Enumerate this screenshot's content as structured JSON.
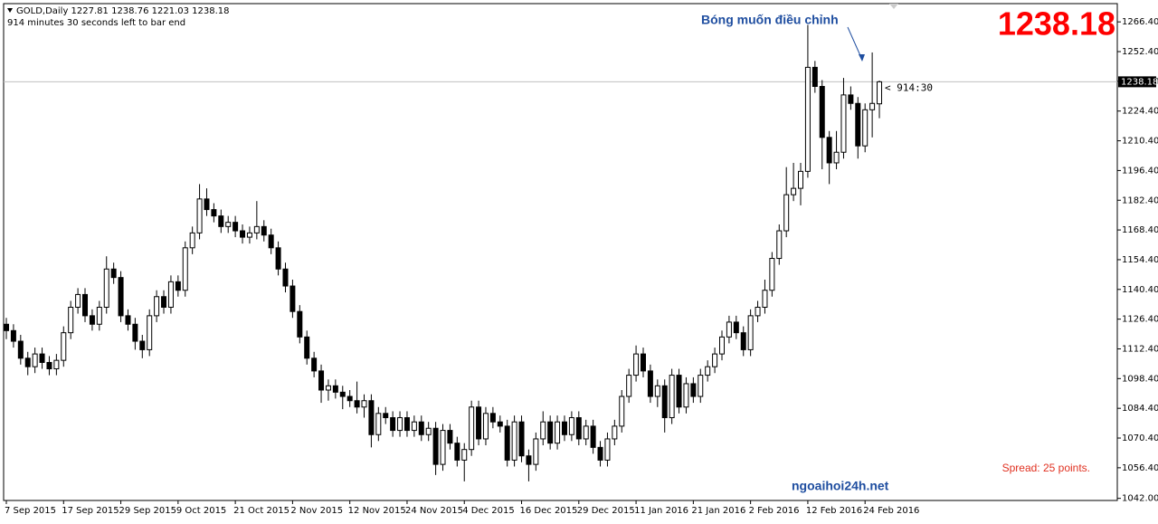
{
  "chart_data": {
    "type": "candlestick",
    "header": "GOLD,Daily  1227.81 1238.76 1221.03 1238.18",
    "timer": "914 minutes 30 seconds left to bar end",
    "annotation": "Bóng muốn điều chỉnh",
    "bid": 1238.18,
    "countdown": "< 914:30",
    "watermark": "ngoaihoi24h.net",
    "spread": "Spread: 25 points.",
    "up_color": "#ffffff",
    "down_color": "#000000",
    "wick_color": "#000000",
    "ylim": [
      1041,
      1275
    ],
    "yticks": [
      {
        "value": 1266.4,
        "label": "1266.40"
      },
      {
        "value": 1252.4,
        "label": "1252.40"
      },
      {
        "value": 1238.4,
        "label": "1238.40"
      },
      {
        "value": 1224.4,
        "label": "1224.40"
      },
      {
        "value": 1210.4,
        "label": "1210.40"
      },
      {
        "value": 1196.4,
        "label": "1196.40"
      },
      {
        "value": 1182.4,
        "label": "1182.40"
      },
      {
        "value": 1168.4,
        "label": "1168.40"
      },
      {
        "value": 1154.4,
        "label": "1154.40"
      },
      {
        "value": 1140.4,
        "label": "1140.40"
      },
      {
        "value": 1126.4,
        "label": "1126.40"
      },
      {
        "value": 1112.4,
        "label": "1112.40"
      },
      {
        "value": 1098.4,
        "label": "1098.40"
      },
      {
        "value": 1084.4,
        "label": "1084.40"
      },
      {
        "value": 1070.4,
        "label": "1070.40"
      },
      {
        "value": 1056.4,
        "label": "1056.40"
      },
      {
        "value": 1042,
        "label": "1042.00"
      }
    ],
    "categories": [
      "7 Sep 2015",
      null,
      null,
      null,
      null,
      null,
      null,
      null,
      "17 Sep 2015",
      null,
      null,
      null,
      null,
      null,
      null,
      null,
      "29 Sep 2015",
      null,
      null,
      null,
      null,
      null,
      null,
      null,
      "9 Oct 2015",
      null,
      null,
      null,
      null,
      null,
      null,
      null,
      "21 Oct 2015",
      null,
      null,
      null,
      null,
      null,
      null,
      null,
      "2 Nov 2015",
      null,
      null,
      null,
      null,
      null,
      null,
      null,
      "12 Nov 2015",
      null,
      null,
      null,
      null,
      null,
      null,
      null,
      "24 Nov 2015",
      null,
      null,
      null,
      null,
      null,
      null,
      null,
      "4 Dec 2015",
      null,
      null,
      null,
      null,
      null,
      null,
      null,
      "16 Dec 2015",
      null,
      null,
      null,
      null,
      null,
      null,
      null,
      "29 Dec 2015",
      null,
      null,
      null,
      null,
      null,
      null,
      null,
      "11 Jan 2016",
      null,
      null,
      null,
      null,
      null,
      null,
      null,
      "21 Jan 2016",
      null,
      null,
      null,
      null,
      null,
      null,
      null,
      "2 Feb 2016",
      null,
      null,
      null,
      null,
      null,
      null,
      null,
      "12 Feb 2016",
      null,
      null,
      null,
      null,
      null,
      null,
      null,
      "24 Feb 2016",
      null,
      null
    ],
    "ohlc": [
      [
        1124,
        1127,
        1117,
        1121
      ],
      [
        1121,
        1124,
        1113,
        1116
      ],
      [
        1116,
        1119,
        1105,
        1108
      ],
      [
        1108,
        1111,
        1100,
        1104
      ],
      [
        1104,
        1113,
        1101,
        1110
      ],
      [
        1110,
        1113,
        1103,
        1106
      ],
      [
        1106,
        1109,
        1100,
        1103
      ],
      [
        1103,
        1110,
        1100,
        1107
      ],
      [
        1107,
        1123,
        1104,
        1120
      ],
      [
        1120,
        1135,
        1117,
        1132
      ],
      [
        1132,
        1141,
        1129,
        1138
      ],
      [
        1138,
        1141,
        1125,
        1128
      ],
      [
        1128,
        1131,
        1121,
        1124
      ],
      [
        1124,
        1135,
        1121,
        1132
      ],
      [
        1132,
        1156,
        1129,
        1150
      ],
      [
        1150,
        1153,
        1143,
        1146
      ],
      [
        1146,
        1149,
        1125,
        1128
      ],
      [
        1128,
        1131,
        1121,
        1124
      ],
      [
        1124,
        1127,
        1112,
        1116
      ],
      [
        1116,
        1119,
        1108,
        1112
      ],
      [
        1112,
        1131,
        1109,
        1128
      ],
      [
        1128,
        1140,
        1125,
        1137
      ],
      [
        1137,
        1140,
        1129,
        1132
      ],
      [
        1132,
        1147,
        1129,
        1144
      ],
      [
        1144,
        1147,
        1137,
        1140
      ],
      [
        1140,
        1163,
        1137,
        1160
      ],
      [
        1160,
        1170,
        1157,
        1167
      ],
      [
        1167,
        1190,
        1164,
        1183
      ],
      [
        1183,
        1188,
        1175,
        1178
      ],
      [
        1178,
        1181,
        1172,
        1175
      ],
      [
        1175,
        1178,
        1167,
        1170
      ],
      [
        1170,
        1175,
        1167,
        1172
      ],
      [
        1172,
        1175,
        1165,
        1168
      ],
      [
        1168,
        1171,
        1162,
        1165
      ],
      [
        1165,
        1170,
        1162,
        1167
      ],
      [
        1167,
        1182,
        1164,
        1170
      ],
      [
        1170,
        1173,
        1163,
        1166
      ],
      [
        1166,
        1169,
        1157,
        1160
      ],
      [
        1160,
        1163,
        1147,
        1150
      ],
      [
        1150,
        1153,
        1139,
        1142
      ],
      [
        1142,
        1145,
        1127,
        1130
      ],
      [
        1130,
        1133,
        1115,
        1118
      ],
      [
        1118,
        1121,
        1105,
        1108
      ],
      [
        1108,
        1111,
        1099,
        1102
      ],
      [
        1102,
        1105,
        1087,
        1093
      ],
      [
        1093,
        1098,
        1088,
        1095
      ],
      [
        1095,
        1098,
        1089,
        1092
      ],
      [
        1092,
        1095,
        1084,
        1090
      ],
      [
        1090,
        1093,
        1085,
        1088
      ],
      [
        1088,
        1097,
        1082,
        1085
      ],
      [
        1085,
        1091,
        1080,
        1088
      ],
      [
        1088,
        1091,
        1066,
        1072
      ],
      [
        1072,
        1085,
        1069,
        1082
      ],
      [
        1082,
        1085,
        1077,
        1080
      ],
      [
        1080,
        1083,
        1071,
        1074
      ],
      [
        1074,
        1083,
        1071,
        1080
      ],
      [
        1080,
        1083,
        1071,
        1074
      ],
      [
        1074,
        1081,
        1071,
        1078
      ],
      [
        1078,
        1081,
        1069,
        1072
      ],
      [
        1072,
        1078,
        1069,
        1075
      ],
      [
        1075,
        1078,
        1053,
        1058
      ],
      [
        1058,
        1077,
        1055,
        1074
      ],
      [
        1074,
        1077,
        1065,
        1068
      ],
      [
        1068,
        1071,
        1057,
        1060
      ],
      [
        1060,
        1068,
        1050,
        1065
      ],
      [
        1065,
        1088,
        1062,
        1085
      ],
      [
        1085,
        1088,
        1067,
        1070
      ],
      [
        1070,
        1085,
        1067,
        1082
      ],
      [
        1082,
        1085,
        1075,
        1078
      ],
      [
        1078,
        1081,
        1073,
        1076
      ],
      [
        1076,
        1079,
        1057,
        1060
      ],
      [
        1060,
        1081,
        1057,
        1078
      ],
      [
        1078,
        1081,
        1059,
        1062
      ],
      [
        1062,
        1065,
        1050,
        1058
      ],
      [
        1058,
        1073,
        1055,
        1070
      ],
      [
        1070,
        1083,
        1067,
        1078
      ],
      [
        1078,
        1081,
        1065,
        1068
      ],
      [
        1068,
        1081,
        1065,
        1078
      ],
      [
        1078,
        1081,
        1069,
        1072
      ],
      [
        1072,
        1083,
        1069,
        1080
      ],
      [
        1080,
        1083,
        1067,
        1070
      ],
      [
        1070,
        1079,
        1067,
        1076
      ],
      [
        1076,
        1079,
        1063,
        1066
      ],
      [
        1066,
        1069,
        1057,
        1060
      ],
      [
        1060,
        1073,
        1057,
        1070
      ],
      [
        1070,
        1079,
        1067,
        1076
      ],
      [
        1076,
        1093,
        1073,
        1090
      ],
      [
        1090,
        1103,
        1087,
        1100
      ],
      [
        1100,
        1114,
        1097,
        1110
      ],
      [
        1110,
        1113,
        1099,
        1102
      ],
      [
        1102,
        1105,
        1087,
        1090
      ],
      [
        1090,
        1098,
        1085,
        1095
      ],
      [
        1095,
        1098,
        1073,
        1080
      ],
      [
        1080,
        1103,
        1077,
        1100
      ],
      [
        1100,
        1103,
        1082,
        1085
      ],
      [
        1085,
        1099,
        1082,
        1096
      ],
      [
        1096,
        1099,
        1087,
        1090
      ],
      [
        1090,
        1103,
        1087,
        1100
      ],
      [
        1100,
        1107,
        1097,
        1104
      ],
      [
        1104,
        1113,
        1101,
        1110
      ],
      [
        1110,
        1121,
        1107,
        1118
      ],
      [
        1118,
        1128,
        1115,
        1125
      ],
      [
        1125,
        1128,
        1117,
        1120
      ],
      [
        1120,
        1123,
        1109,
        1112
      ],
      [
        1112,
        1131,
        1109,
        1128
      ],
      [
        1128,
        1135,
        1125,
        1132
      ],
      [
        1132,
        1145,
        1129,
        1140
      ],
      [
        1140,
        1158,
        1137,
        1155
      ],
      [
        1155,
        1171,
        1152,
        1168
      ],
      [
        1168,
        1198,
        1165,
        1185
      ],
      [
        1185,
        1200,
        1182,
        1188
      ],
      [
        1188,
        1200,
        1180,
        1196
      ],
      [
        1196,
        1265,
        1193,
        1245
      ],
      [
        1245,
        1248,
        1233,
        1236
      ],
      [
        1236,
        1239,
        1197,
        1212
      ],
      [
        1212,
        1215,
        1190,
        1200
      ],
      [
        1200,
        1215,
        1197,
        1205
      ],
      [
        1205,
        1240,
        1202,
        1232
      ],
      [
        1232,
        1236,
        1225,
        1228
      ],
      [
        1228,
        1231,
        1202,
        1208
      ],
      [
        1208,
        1228,
        1205,
        1225
      ],
      [
        1225,
        1252,
        1212,
        1228
      ],
      [
        1227.81,
        1238.76,
        1221.03,
        1238.18
      ]
    ]
  }
}
